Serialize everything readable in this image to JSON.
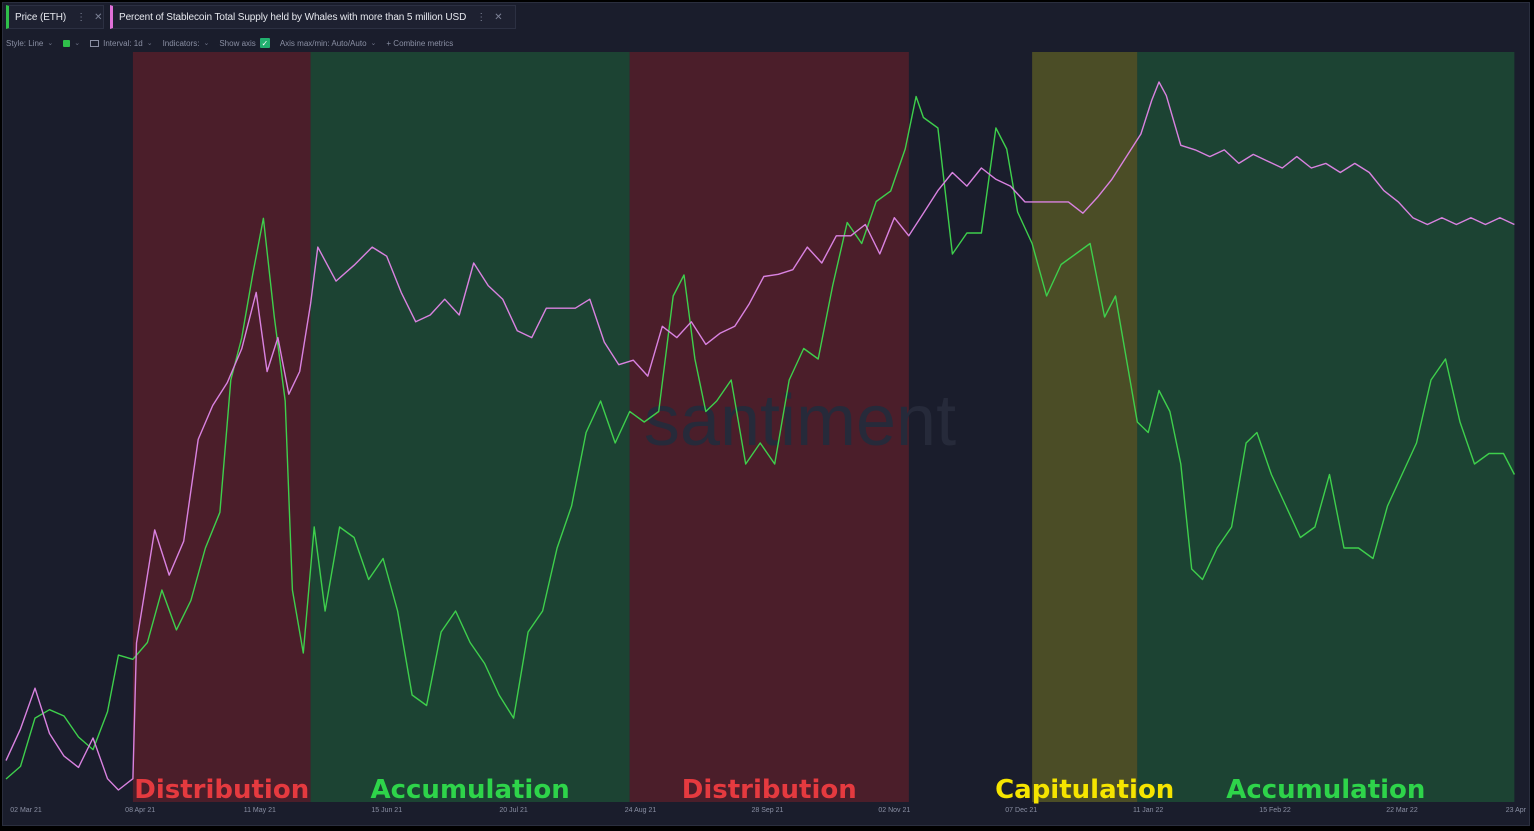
{
  "tabs": [
    {
      "label": "Price (ETH)",
      "color": "#2fbf4a"
    },
    {
      "label": "Percent of Stablecoin Total Supply held by Whales with more than 5 million USD",
      "color": "#e070d8"
    }
  ],
  "toolbar": {
    "style": "Style: Line",
    "interval": "Interval: 1d",
    "indicators": "Indicators:",
    "show_axis": "Show axis",
    "axis_maxmin": "Axis max/min: Auto/Auto",
    "combine": "+ Combine metrics"
  },
  "watermark": "santiment",
  "chart_data": {
    "type": "line",
    "x_ticks": [
      "02 Mar 21",
      "08 Apr 21",
      "11 May 21",
      "15 Jun 21",
      "20 Jul 21",
      "24 Aug 21",
      "28 Sep 21",
      "02 Nov 21",
      "07 Dec 21",
      "11 Jan 22",
      "15 Feb 22",
      "22 Mar 22",
      "23 Apr"
    ],
    "x_range": [
      "2021-03-02",
      "2022-04-23"
    ],
    "y_axis_shown": false,
    "regions": [
      {
        "label": "Distribution",
        "start": "2021-04-06",
        "end": "2021-05-25",
        "color": "#6b1f2a",
        "text_color": "#e53a3f"
      },
      {
        "label": "Accumulation",
        "start": "2021-05-25",
        "end": "2021-08-21",
        "color": "#1e5a38",
        "text_color": "#2ed44a"
      },
      {
        "label": "Distribution",
        "start": "2021-08-21",
        "end": "2021-11-06",
        "color": "#6b1f2a",
        "text_color": "#e53a3f"
      },
      {
        "label": "Capitulation",
        "start": "2021-12-10",
        "end": "2022-01-08",
        "color": "#6b6a24",
        "text_color": "#f5e400"
      },
      {
        "label": "Accumulation",
        "start": "2022-01-08",
        "end": "2022-04-22",
        "color": "#1e5a38",
        "text_color": "#2ed44a"
      }
    ],
    "series": [
      {
        "name": "Price (ETH)",
        "color": "#3ecf4c",
        "points": [
          [
            "2021-03-02",
            1500
          ],
          [
            "2021-03-06",
            1560
          ],
          [
            "2021-03-10",
            1790
          ],
          [
            "2021-03-14",
            1830
          ],
          [
            "2021-03-18",
            1800
          ],
          [
            "2021-03-22",
            1700
          ],
          [
            "2021-03-26",
            1640
          ],
          [
            "2021-03-30",
            1820
          ],
          [
            "2021-04-02",
            2090
          ],
          [
            "2021-04-06",
            2070
          ],
          [
            "2021-04-10",
            2150
          ],
          [
            "2021-04-14",
            2400
          ],
          [
            "2021-04-18",
            2210
          ],
          [
            "2021-04-22",
            2350
          ],
          [
            "2021-04-26",
            2600
          ],
          [
            "2021-04-30",
            2770
          ],
          [
            "2021-05-03",
            3400
          ],
          [
            "2021-05-06",
            3600
          ],
          [
            "2021-05-09",
            3900
          ],
          [
            "2021-05-12",
            4170
          ],
          [
            "2021-05-15",
            3700
          ],
          [
            "2021-05-18",
            3300
          ],
          [
            "2021-05-20",
            2400
          ],
          [
            "2021-05-23",
            2100
          ],
          [
            "2021-05-26",
            2700
          ],
          [
            "2021-05-29",
            2300
          ],
          [
            "2021-06-02",
            2700
          ],
          [
            "2021-06-06",
            2650
          ],
          [
            "2021-06-10",
            2450
          ],
          [
            "2021-06-14",
            2550
          ],
          [
            "2021-06-18",
            2300
          ],
          [
            "2021-06-22",
            1900
          ],
          [
            "2021-06-26",
            1850
          ],
          [
            "2021-06-30",
            2200
          ],
          [
            "2021-07-04",
            2300
          ],
          [
            "2021-07-08",
            2150
          ],
          [
            "2021-07-12",
            2050
          ],
          [
            "2021-07-16",
            1900
          ],
          [
            "2021-07-20",
            1790
          ],
          [
            "2021-07-24",
            2200
          ],
          [
            "2021-07-28",
            2300
          ],
          [
            "2021-08-01",
            2600
          ],
          [
            "2021-08-05",
            2800
          ],
          [
            "2021-08-09",
            3150
          ],
          [
            "2021-08-13",
            3300
          ],
          [
            "2021-08-17",
            3100
          ],
          [
            "2021-08-21",
            3250
          ],
          [
            "2021-08-25",
            3200
          ],
          [
            "2021-08-29",
            3250
          ],
          [
            "2021-09-02",
            3800
          ],
          [
            "2021-09-05",
            3900
          ],
          [
            "2021-09-08",
            3500
          ],
          [
            "2021-09-11",
            3250
          ],
          [
            "2021-09-14",
            3300
          ],
          [
            "2021-09-18",
            3400
          ],
          [
            "2021-09-22",
            3000
          ],
          [
            "2021-09-26",
            3100
          ],
          [
            "2021-09-30",
            3000
          ],
          [
            "2021-10-04",
            3400
          ],
          [
            "2021-10-08",
            3550
          ],
          [
            "2021-10-12",
            3500
          ],
          [
            "2021-10-16",
            3850
          ],
          [
            "2021-10-20",
            4150
          ],
          [
            "2021-10-24",
            4050
          ],
          [
            "2021-10-28",
            4250
          ],
          [
            "2021-11-01",
            4300
          ],
          [
            "2021-11-05",
            4500
          ],
          [
            "2021-11-08",
            4750
          ],
          [
            "2021-11-10",
            4650
          ],
          [
            "2021-11-14",
            4600
          ],
          [
            "2021-11-18",
            4000
          ],
          [
            "2021-11-22",
            4100
          ],
          [
            "2021-11-26",
            4100
          ],
          [
            "2021-11-30",
            4600
          ],
          [
            "2021-12-03",
            4500
          ],
          [
            "2021-12-06",
            4200
          ],
          [
            "2021-12-10",
            4050
          ],
          [
            "2021-12-14",
            3800
          ],
          [
            "2021-12-18",
            3950
          ],
          [
            "2021-12-22",
            4000
          ],
          [
            "2021-12-26",
            4050
          ],
          [
            "2021-12-30",
            3700
          ],
          [
            "2022-01-02",
            3800
          ],
          [
            "2022-01-05",
            3500
          ],
          [
            "2022-01-08",
            3200
          ],
          [
            "2022-01-11",
            3150
          ],
          [
            "2022-01-14",
            3350
          ],
          [
            "2022-01-17",
            3250
          ],
          [
            "2022-01-20",
            3000
          ],
          [
            "2022-01-23",
            2500
          ],
          [
            "2022-01-26",
            2450
          ],
          [
            "2022-01-30",
            2600
          ],
          [
            "2022-02-03",
            2700
          ],
          [
            "2022-02-07",
            3100
          ],
          [
            "2022-02-10",
            3150
          ],
          [
            "2022-02-14",
            2950
          ],
          [
            "2022-02-18",
            2800
          ],
          [
            "2022-02-22",
            2650
          ],
          [
            "2022-02-26",
            2700
          ],
          [
            "2022-03-02",
            2950
          ],
          [
            "2022-03-06",
            2600
          ],
          [
            "2022-03-10",
            2600
          ],
          [
            "2022-03-14",
            2550
          ],
          [
            "2022-03-18",
            2800
          ],
          [
            "2022-03-22",
            2950
          ],
          [
            "2022-03-26",
            3100
          ],
          [
            "2022-03-30",
            3400
          ],
          [
            "2022-04-03",
            3500
          ],
          [
            "2022-04-07",
            3200
          ],
          [
            "2022-04-11",
            3000
          ],
          [
            "2022-04-15",
            3050
          ],
          [
            "2022-04-19",
            3050
          ],
          [
            "2022-04-22",
            2950
          ]
        ]
      },
      {
        "name": "Percent of Stablecoin Total Supply held by Whales with more than 5 million USD",
        "color": "#d982e0",
        "points": [
          [
            "2021-03-02",
            47.8
          ],
          [
            "2021-03-06",
            49.2
          ],
          [
            "2021-03-10",
            51.0
          ],
          [
            "2021-03-14",
            49.0
          ],
          [
            "2021-03-18",
            48.0
          ],
          [
            "2021-03-22",
            47.5
          ],
          [
            "2021-03-26",
            48.8
          ],
          [
            "2021-03-30",
            47.0
          ],
          [
            "2021-04-02",
            46.5
          ],
          [
            "2021-04-06",
            47.0
          ],
          [
            "2021-04-07",
            53.0
          ],
          [
            "2021-04-12",
            58.0
          ],
          [
            "2021-04-16",
            56.0
          ],
          [
            "2021-04-20",
            57.5
          ],
          [
            "2021-04-24",
            62.0
          ],
          [
            "2021-04-28",
            63.5
          ],
          [
            "2021-05-02",
            64.5
          ],
          [
            "2021-05-06",
            66.0
          ],
          [
            "2021-05-10",
            68.5
          ],
          [
            "2021-05-13",
            65.0
          ],
          [
            "2021-05-16",
            66.5
          ],
          [
            "2021-05-19",
            64.0
          ],
          [
            "2021-05-22",
            65.0
          ],
          [
            "2021-05-25",
            68.0
          ],
          [
            "2021-05-27",
            70.5
          ],
          [
            "2021-06-01",
            69.0
          ],
          [
            "2021-06-06",
            69.7
          ],
          [
            "2021-06-11",
            70.5
          ],
          [
            "2021-06-15",
            70.1
          ],
          [
            "2021-06-19",
            68.5
          ],
          [
            "2021-06-23",
            67.2
          ],
          [
            "2021-06-27",
            67.5
          ],
          [
            "2021-07-01",
            68.2
          ],
          [
            "2021-07-05",
            67.5
          ],
          [
            "2021-07-09",
            69.8
          ],
          [
            "2021-07-13",
            68.8
          ],
          [
            "2021-07-17",
            68.2
          ],
          [
            "2021-07-21",
            66.8
          ],
          [
            "2021-07-25",
            66.5
          ],
          [
            "2021-07-29",
            67.8
          ],
          [
            "2021-08-02",
            67.8
          ],
          [
            "2021-08-06",
            67.8
          ],
          [
            "2021-08-10",
            68.2
          ],
          [
            "2021-08-14",
            66.3
          ],
          [
            "2021-08-18",
            65.3
          ],
          [
            "2021-08-22",
            65.5
          ],
          [
            "2021-08-26",
            64.8
          ],
          [
            "2021-08-30",
            67.0
          ],
          [
            "2021-09-03",
            66.5
          ],
          [
            "2021-09-07",
            67.2
          ],
          [
            "2021-09-11",
            66.2
          ],
          [
            "2021-09-15",
            66.7
          ],
          [
            "2021-09-19",
            67.0
          ],
          [
            "2021-09-23",
            68.0
          ],
          [
            "2021-09-27",
            69.2
          ],
          [
            "2021-10-01",
            69.3
          ],
          [
            "2021-10-05",
            69.5
          ],
          [
            "2021-10-09",
            70.5
          ],
          [
            "2021-10-13",
            69.8
          ],
          [
            "2021-10-17",
            71.0
          ],
          [
            "2021-10-21",
            71.0
          ],
          [
            "2021-10-25",
            71.5
          ],
          [
            "2021-10-29",
            70.2
          ],
          [
            "2021-11-02",
            71.8
          ],
          [
            "2021-11-06",
            71.0
          ],
          [
            "2021-11-10",
            72.0
          ],
          [
            "2021-11-14",
            73.0
          ],
          [
            "2021-11-18",
            73.8
          ],
          [
            "2021-11-22",
            73.2
          ],
          [
            "2021-11-26",
            74.0
          ],
          [
            "2021-11-30",
            73.5
          ],
          [
            "2021-12-04",
            73.2
          ],
          [
            "2021-12-08",
            72.5
          ],
          [
            "2021-12-12",
            72.5
          ],
          [
            "2021-12-16",
            72.5
          ],
          [
            "2021-12-20",
            72.5
          ],
          [
            "2021-12-24",
            72.0
          ],
          [
            "2021-12-28",
            72.7
          ],
          [
            "2022-01-01",
            73.5
          ],
          [
            "2022-01-05",
            74.5
          ],
          [
            "2022-01-09",
            75.5
          ],
          [
            "2022-01-12",
            77.0
          ],
          [
            "2022-01-14",
            77.8
          ],
          [
            "2022-01-16",
            77.2
          ],
          [
            "2022-01-20",
            75.0
          ],
          [
            "2022-01-24",
            74.8
          ],
          [
            "2022-01-28",
            74.5
          ],
          [
            "2022-02-01",
            74.8
          ],
          [
            "2022-02-05",
            74.2
          ],
          [
            "2022-02-09",
            74.6
          ],
          [
            "2022-02-13",
            74.3
          ],
          [
            "2022-02-17",
            74.0
          ],
          [
            "2022-02-21",
            74.5
          ],
          [
            "2022-02-25",
            74.0
          ],
          [
            "2022-03-01",
            74.2
          ],
          [
            "2022-03-05",
            73.8
          ],
          [
            "2022-03-09",
            74.2
          ],
          [
            "2022-03-13",
            73.8
          ],
          [
            "2022-03-17",
            73.0
          ],
          [
            "2022-03-21",
            72.5
          ],
          [
            "2022-03-25",
            71.8
          ],
          [
            "2022-03-29",
            71.5
          ],
          [
            "2022-04-02",
            71.8
          ],
          [
            "2022-04-06",
            71.5
          ],
          [
            "2022-04-10",
            71.8
          ],
          [
            "2022-04-14",
            71.5
          ],
          [
            "2022-04-18",
            71.8
          ],
          [
            "2022-04-22",
            71.5
          ]
        ]
      }
    ]
  }
}
